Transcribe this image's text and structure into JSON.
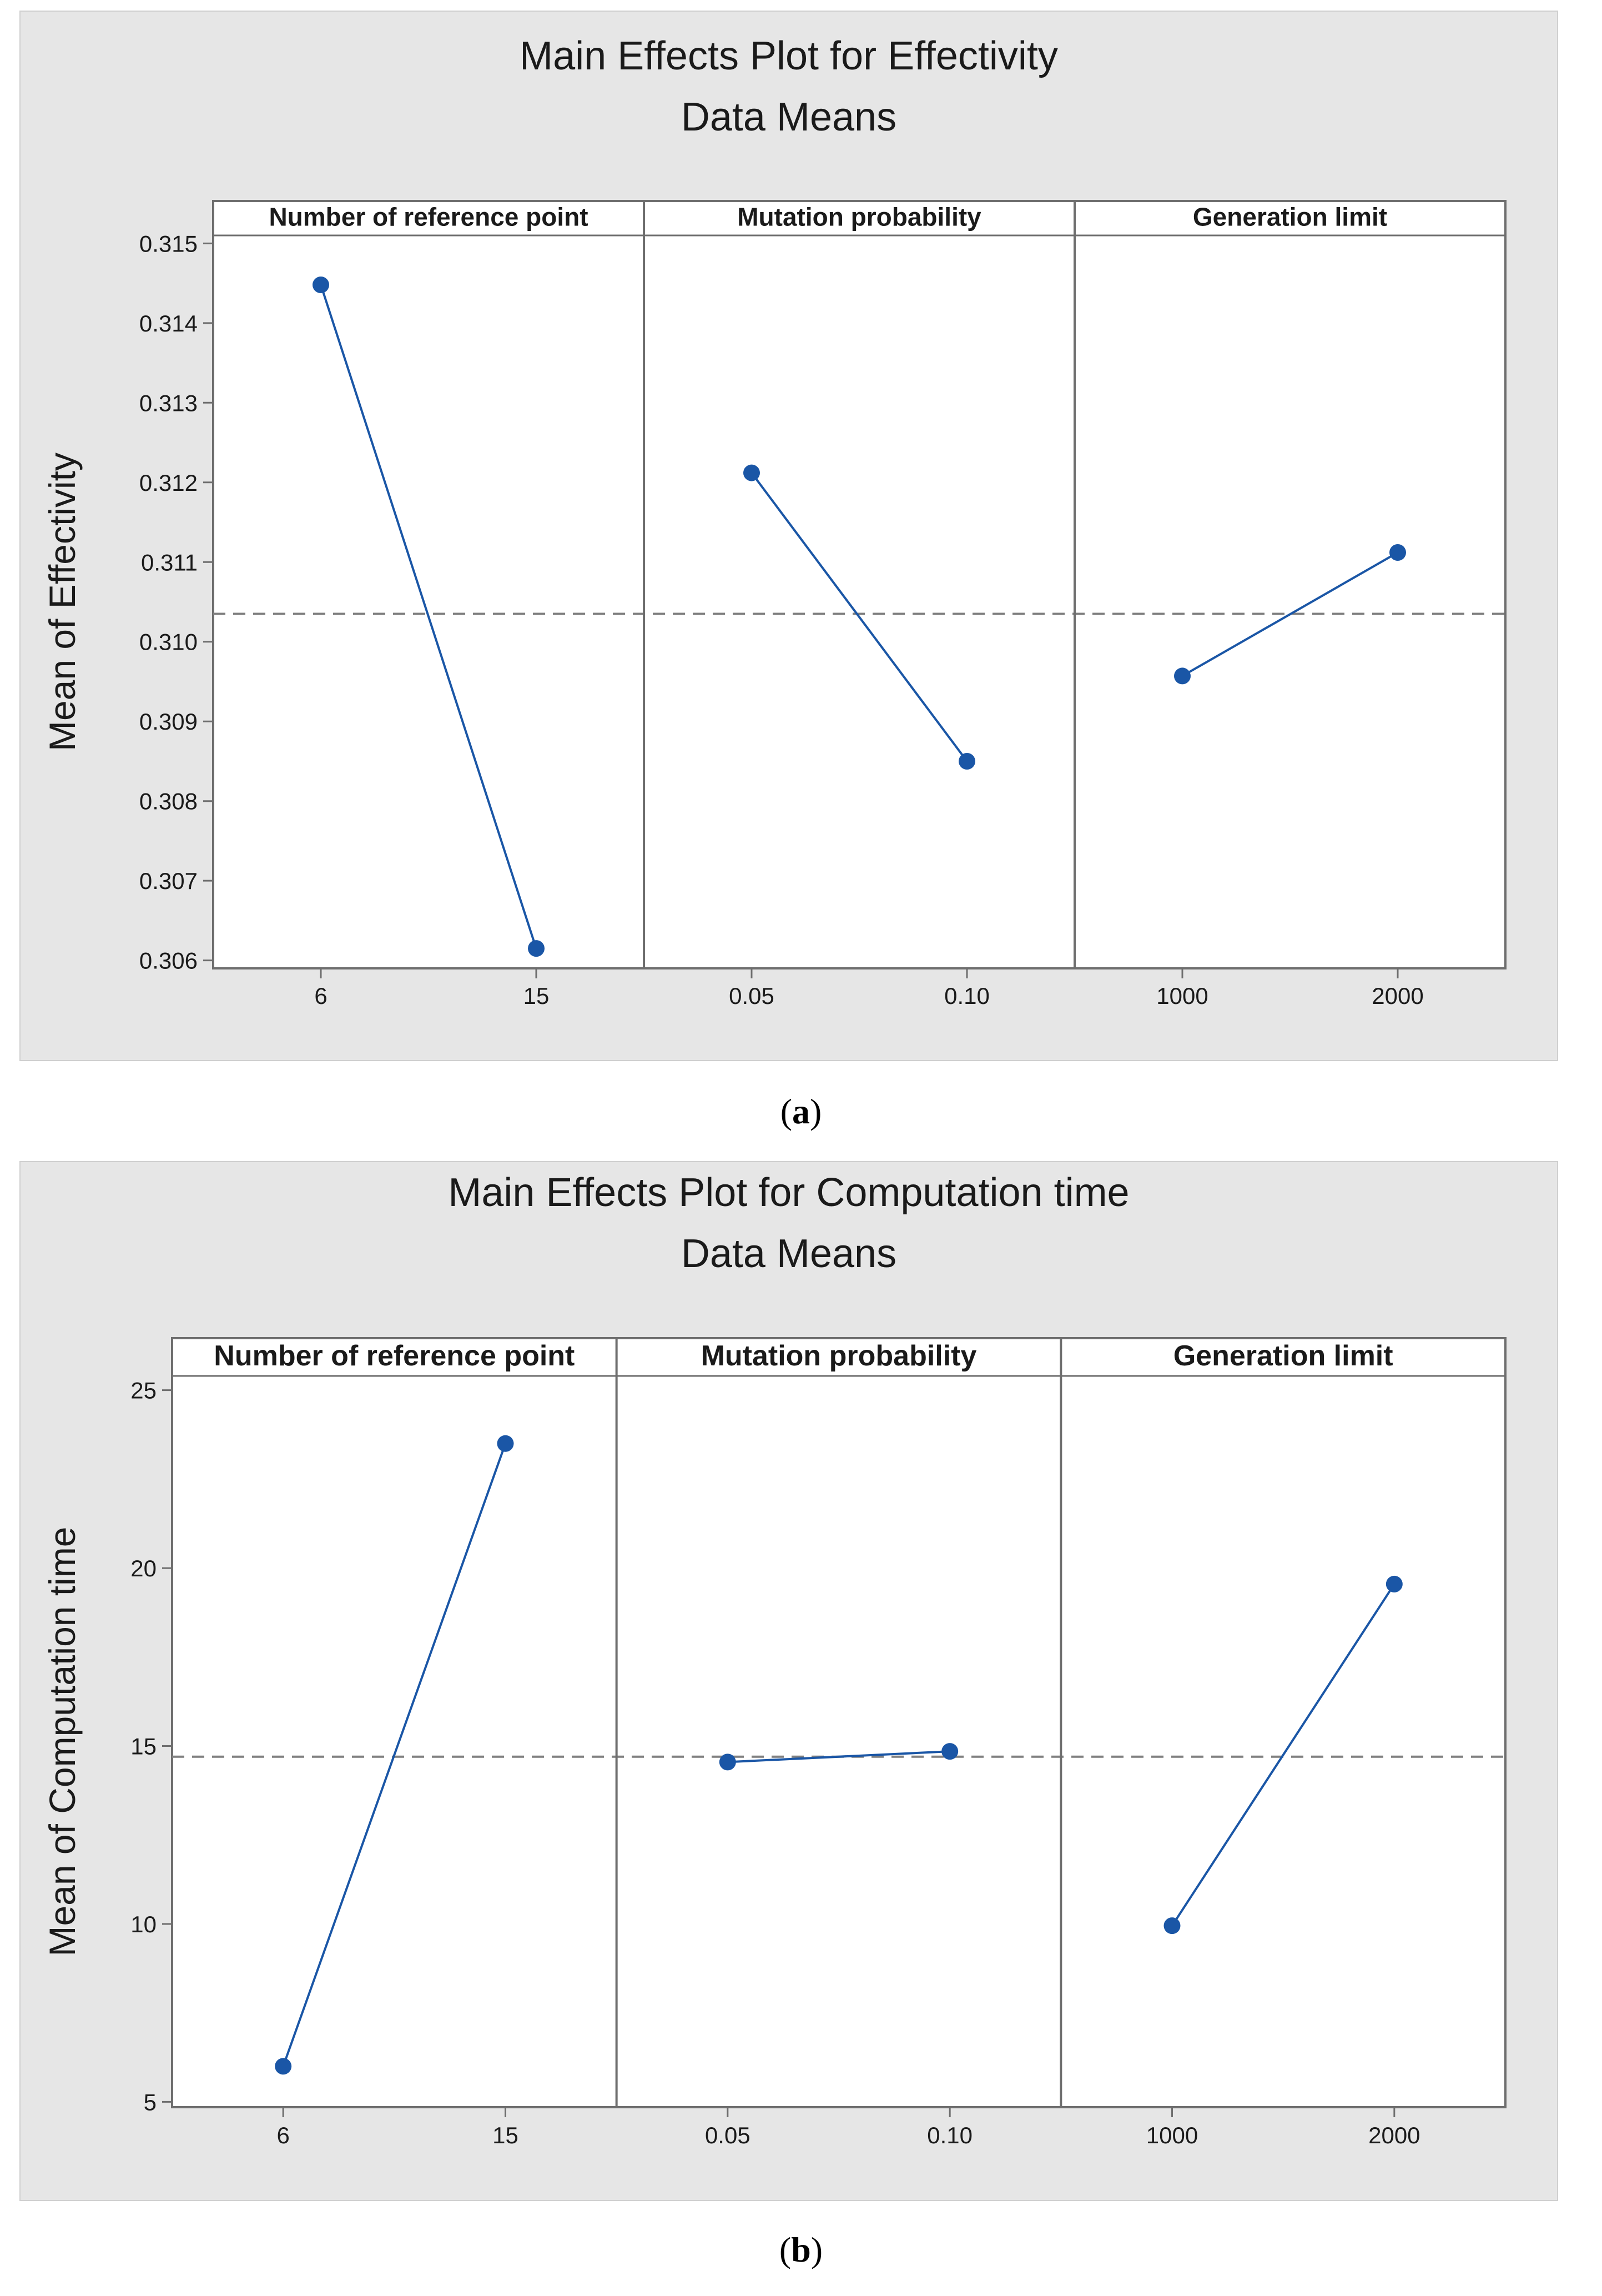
{
  "chart_data": [
    {
      "type": "line",
      "panel_label": "a",
      "title": "Main Effects Plot for Effectivity",
      "subtitle": "Data Means",
      "ylabel": "Mean of Effectivity",
      "ylim": [
        0.3059,
        0.3151
      ],
      "yticks": [
        "0.306",
        "0.307",
        "0.308",
        "0.309",
        "0.310",
        "0.311",
        "0.312",
        "0.313",
        "0.314",
        "0.315"
      ],
      "mean_reference": 0.31035,
      "colors": {
        "background": "#e6e6e6",
        "line": "#1a56a6",
        "marker": "#1a56a6",
        "reference": "#808080"
      },
      "factors": [
        {
          "name": "Number of reference point",
          "levels": [
            "6",
            "15"
          ],
          "values": [
            0.31448,
            0.30615
          ]
        },
        {
          "name": "Mutation probability",
          "levels": [
            "0.05",
            "0.10"
          ],
          "values": [
            0.31212,
            0.3085
          ]
        },
        {
          "name": "Generation limit",
          "levels": [
            "1000",
            "2000"
          ],
          "values": [
            0.30957,
            0.31112
          ]
        }
      ]
    },
    {
      "type": "line",
      "panel_label": "b",
      "title": "Main Effects Plot for Computation time",
      "subtitle": "Data Means",
      "ylabel": "Mean of Computation time",
      "ylim": [
        4.85,
        25.4
      ],
      "yticks": [
        "5",
        "10",
        "15",
        "20",
        "25"
      ],
      "mean_reference": 14.7,
      "colors": {
        "background": "#e6e6e6",
        "line": "#1a56a6",
        "marker": "#1a56a6",
        "reference": "#808080"
      },
      "factors": [
        {
          "name": "Number of reference point",
          "levels": [
            "6",
            "15"
          ],
          "values": [
            6.0,
            23.5
          ]
        },
        {
          "name": "Mutation probability",
          "levels": [
            "0.05",
            "0.10"
          ],
          "values": [
            14.55,
            14.85
          ]
        },
        {
          "name": "Generation limit",
          "levels": [
            "1000",
            "2000"
          ],
          "values": [
            9.95,
            19.55
          ]
        }
      ]
    }
  ]
}
